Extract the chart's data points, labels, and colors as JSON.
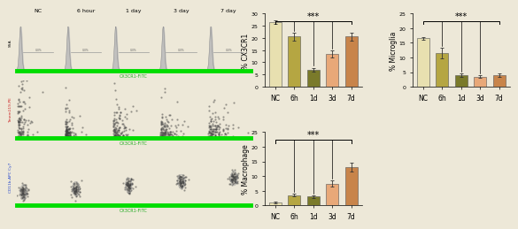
{
  "chart1": {
    "categories": [
      "NC",
      "6h",
      "1d",
      "3d",
      "7d"
    ],
    "values": [
      26.5,
      20.5,
      7.0,
      13.5,
      20.5
    ],
    "errors": [
      0.8,
      1.5,
      0.8,
      1.5,
      1.8
    ],
    "colors": [
      "#e8e0b0",
      "#b5a642",
      "#7a7a2a",
      "#e8a878",
      "#c8844a"
    ],
    "ylim": [
      0,
      30
    ],
    "yticks": [
      0,
      5,
      10,
      15,
      20,
      25,
      30
    ],
    "ylabel": "% CX3CR1",
    "sig_pairs": [
      [
        0,
        4
      ]
    ],
    "sig_labels": [
      "***"
    ]
  },
  "chart2": {
    "categories": [
      "NC",
      "6h",
      "1d",
      "3d",
      "7d"
    ],
    "values": [
      16.5,
      11.5,
      4.0,
      3.5,
      4.0
    ],
    "errors": [
      0.5,
      1.8,
      0.5,
      0.4,
      0.5
    ],
    "colors": [
      "#e8e0b0",
      "#b5a642",
      "#7a7a2a",
      "#e8a878",
      "#c8844a"
    ],
    "ylim": [
      0,
      25
    ],
    "yticks": [
      0,
      5,
      10,
      15,
      20,
      25
    ],
    "ylabel": "% Microglia",
    "sig_pairs": [
      [
        0,
        4
      ]
    ],
    "sig_labels": [
      "***"
    ]
  },
  "chart3": {
    "categories": [
      "NC",
      "6h",
      "1d",
      "3d",
      "7d"
    ],
    "values": [
      1.0,
      3.5,
      3.0,
      7.5,
      13.0
    ],
    "errors": [
      0.3,
      0.5,
      0.5,
      1.0,
      1.5
    ],
    "colors": [
      "#e8e0b0",
      "#b5a642",
      "#7a7a2a",
      "#e8a878",
      "#c8844a"
    ],
    "ylim": [
      0,
      25
    ],
    "yticks": [
      0,
      5,
      10,
      15,
      20,
      25
    ],
    "ylabel": "% Macrophage",
    "sig_pairs": [
      [
        0,
        4
      ]
    ],
    "sig_labels": [
      "***"
    ]
  },
  "facs": {
    "col_labels": [
      "NC",
      "6 hour",
      "1 day",
      "3 day",
      "7 day"
    ],
    "row_y_labels": [
      "SSA",
      "Tmem119-PE",
      "CD11b-APC Cy7"
    ],
    "row_y_colors": [
      "#000000",
      "#cc2222",
      "#2244cc"
    ],
    "x_label": "CX3CR1-FITC",
    "x_label_color": "#22aa22",
    "green_color": "#00dd00"
  },
  "global": {
    "bg_color": "#ede8d8",
    "fontsize_label": 5.5,
    "fontsize_tick": 4.5,
    "fontsize_sig": 7,
    "bar_width": 0.65,
    "edgecolor": "#555555"
  }
}
